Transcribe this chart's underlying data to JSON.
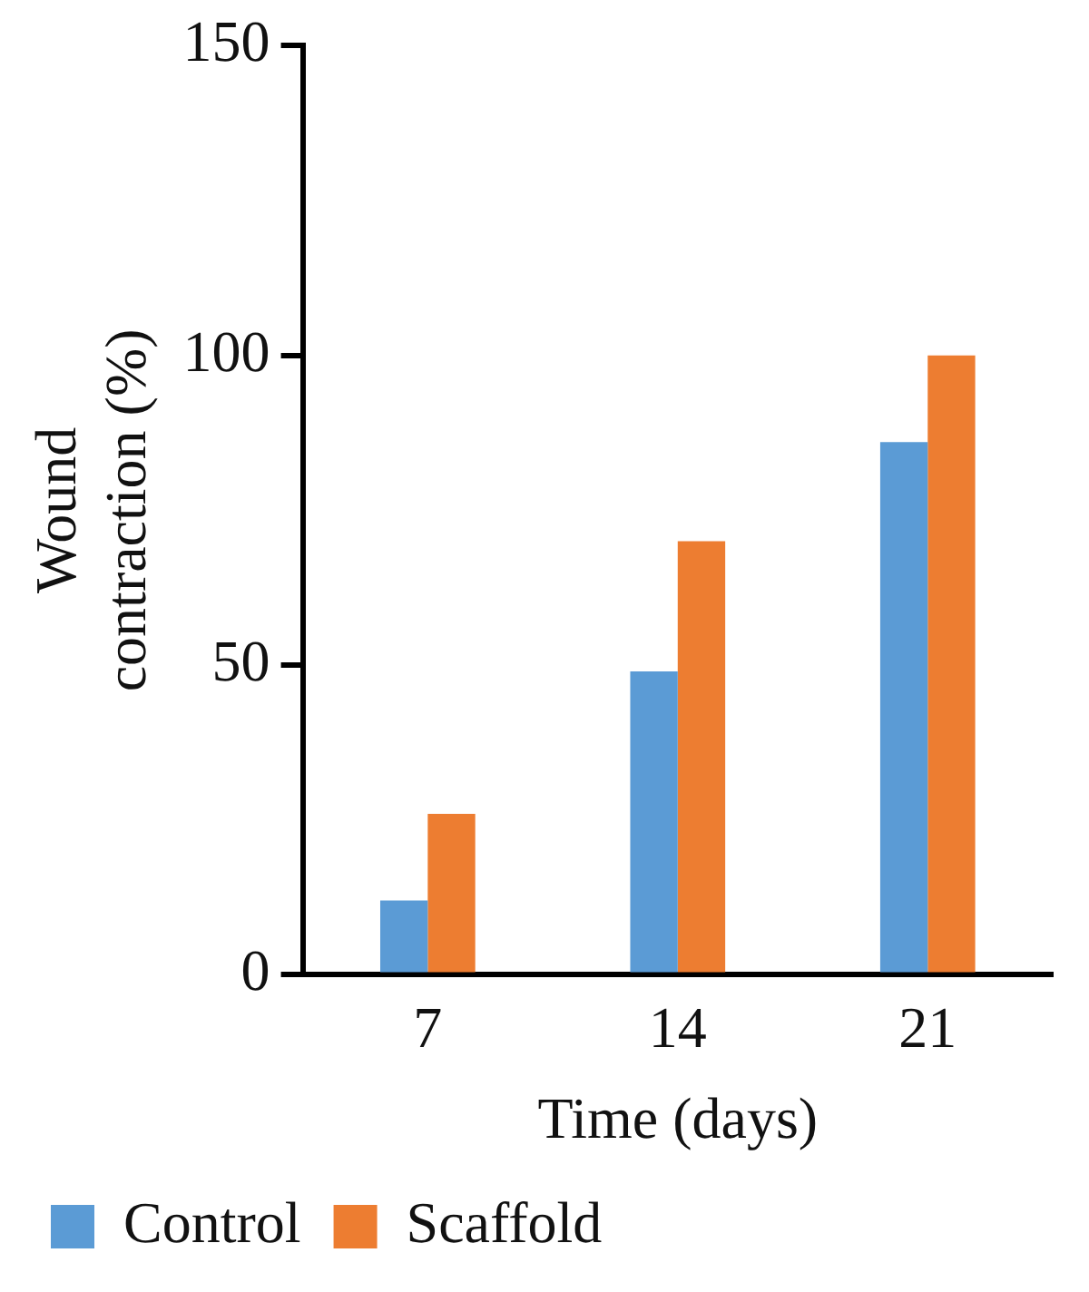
{
  "chart_data": {
    "type": "bar",
    "xlabel": "Time (days)",
    "ylabel": "Wound contraction (%)",
    "categories": [
      "7",
      "14",
      "21"
    ],
    "series": [
      {
        "name": "Control",
        "color": "#5b9bd5",
        "values": [
          12,
          49,
          86
        ]
      },
      {
        "name": "Scaffold",
        "color": "#ed7d31",
        "values": [
          26,
          70,
          100
        ]
      }
    ],
    "ylim": [
      0,
      150
    ],
    "yticks": [
      0,
      50,
      100,
      150
    ],
    "grid": false,
    "legend": "bottom"
  }
}
